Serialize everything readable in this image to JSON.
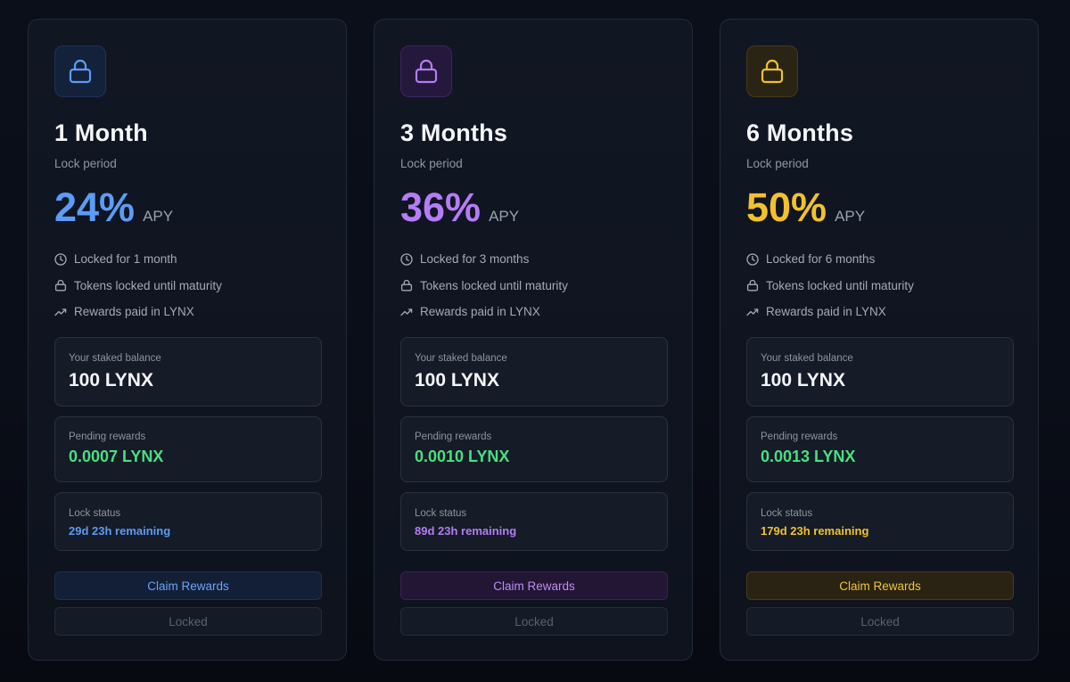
{
  "cards": [
    {
      "title": "1 Month",
      "subtitle": "Lock period",
      "apy_value": "24%",
      "apy_label": "APY",
      "features": [
        "Locked for 1 month",
        "Tokens locked until maturity",
        "Rewards paid in LYNX"
      ],
      "staked_label": "Your staked balance",
      "staked_value": "100 LYNX",
      "pending_label": "Pending rewards",
      "pending_value": "0.0007 LYNX",
      "lock_label": "Lock status",
      "lock_value": "29d 23h remaining",
      "claim_label": "Claim Rewards",
      "locked_label": "Locked",
      "accent": "#5b9cf6",
      "icon_bg": "#14213b",
      "icon_border": "#1f3458",
      "claim_bg": "#131f36",
      "claim_border": "#1d3050",
      "claim_text": "#6aa5f8"
    },
    {
      "title": "3 Months",
      "subtitle": "Lock period",
      "apy_value": "36%",
      "apy_label": "APY",
      "features": [
        "Locked for 3 months",
        "Tokens locked until maturity",
        "Rewards paid in LYNX"
      ],
      "staked_label": "Your staked balance",
      "staked_value": "100 LYNX",
      "pending_label": "Pending rewards",
      "pending_value": "0.0010 LYNX",
      "lock_label": "Lock status",
      "lock_value": "89d 23h remaining",
      "claim_label": "Claim Rewards",
      "locked_label": "Locked",
      "accent": "#b57cf6",
      "icon_bg": "#25183d",
      "icon_border": "#3a2660",
      "claim_bg": "#221634",
      "claim_border": "#352352",
      "claim_text": "#be8cf7"
    },
    {
      "title": "6 Months",
      "subtitle": "Lock period",
      "apy_value": "50%",
      "apy_label": "APY",
      "features": [
        "Locked for 6 months",
        "Tokens locked until maturity",
        "Rewards paid in LYNX"
      ],
      "staked_label": "Your staked balance",
      "staked_value": "100 LYNX",
      "pending_label": "Pending rewards",
      "pending_value": "0.0013 LYNX",
      "lock_label": "Lock status",
      "lock_value": "179d 23h remaining",
      "claim_label": "Claim Rewards",
      "locked_label": "Locked",
      "accent": "#f3c22b",
      "icon_bg": "#2a2414",
      "icon_border": "#463a17",
      "claim_bg": "#2a2313",
      "claim_border": "#4a3c17",
      "claim_text": "#f0c53a"
    }
  ],
  "icons": {
    "header": "lock-icon",
    "features": [
      "clock-icon",
      "lock-icon",
      "trending-up-icon"
    ]
  }
}
